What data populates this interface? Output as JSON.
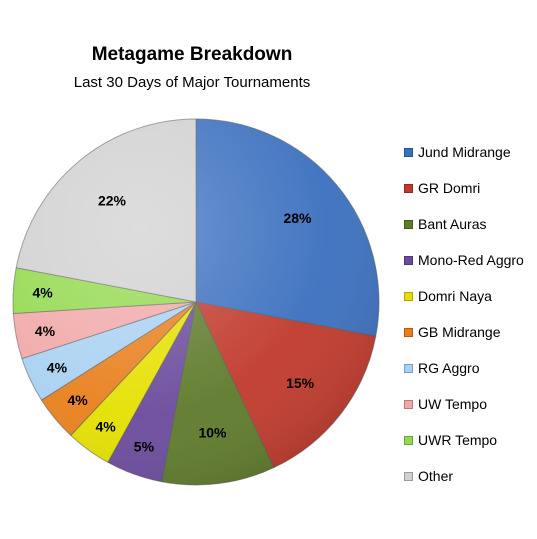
{
  "chart_data": {
    "type": "pie",
    "title": "Metagame Breakdown",
    "subtitle": "Last 30 Days of Major Tournaments",
    "legend_position": "right",
    "slices": [
      {
        "name": "Jund Midrange",
        "value": 28,
        "label": "28%",
        "color": "#3a6fbe"
      },
      {
        "name": "GR Domri",
        "value": 15,
        "label": "15%",
        "color": "#c0392b"
      },
      {
        "name": "Bant Auras",
        "value": 10,
        "label": "10%",
        "color": "#5e7a2a"
      },
      {
        "name": "Mono-Red Aggro",
        "value": 5,
        "label": "5%",
        "color": "#6a4a9c"
      },
      {
        "name": "Domri Naya",
        "value": 4,
        "label": "4%",
        "color": "#e5e000"
      },
      {
        "name": "GB Midrange",
        "value": 4,
        "label": "4%",
        "color": "#e87f1c"
      },
      {
        "name": "RG Aggro",
        "value": 4,
        "label": "4%",
        "color": "#a9d1f2"
      },
      {
        "name": "UW Tempo",
        "value": 4,
        "label": "4%",
        "color": "#f1a8a8"
      },
      {
        "name": "UWR Tempo",
        "value": 4,
        "label": "4%",
        "color": "#93d94e"
      },
      {
        "name": "Other",
        "value": 22,
        "label": "22%",
        "color": "#d0d0d0"
      }
    ]
  }
}
